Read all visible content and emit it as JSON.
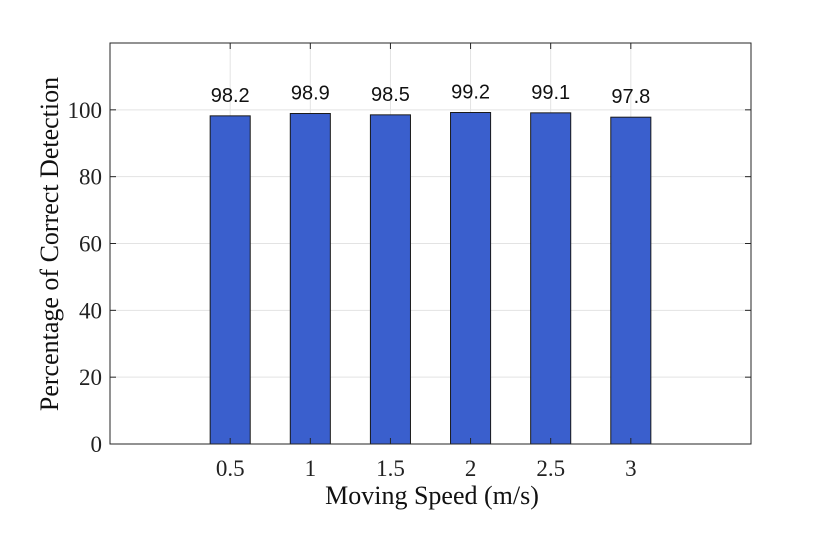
{
  "chart_data": {
    "type": "bar",
    "categories": [
      "0.5",
      "1",
      "1.5",
      "2",
      "2.5",
      "3"
    ],
    "values": [
      98.2,
      98.9,
      98.5,
      99.2,
      99.1,
      97.8
    ],
    "data_labels": [
      "98.2",
      "98.9",
      "98.5",
      "99.2",
      "99.1",
      "97.8"
    ],
    "xlabel": "Moving Speed (m/s)",
    "ylabel": "Percentage of Correct Detection",
    "ylim": [
      0,
      120
    ],
    "yticks": [
      "0",
      "20",
      "40",
      "60",
      "80",
      "100"
    ],
    "grid": true,
    "legend": "none",
    "bar_color": "#3a5fcd",
    "bar_edge_color": "#1a1a1a"
  }
}
